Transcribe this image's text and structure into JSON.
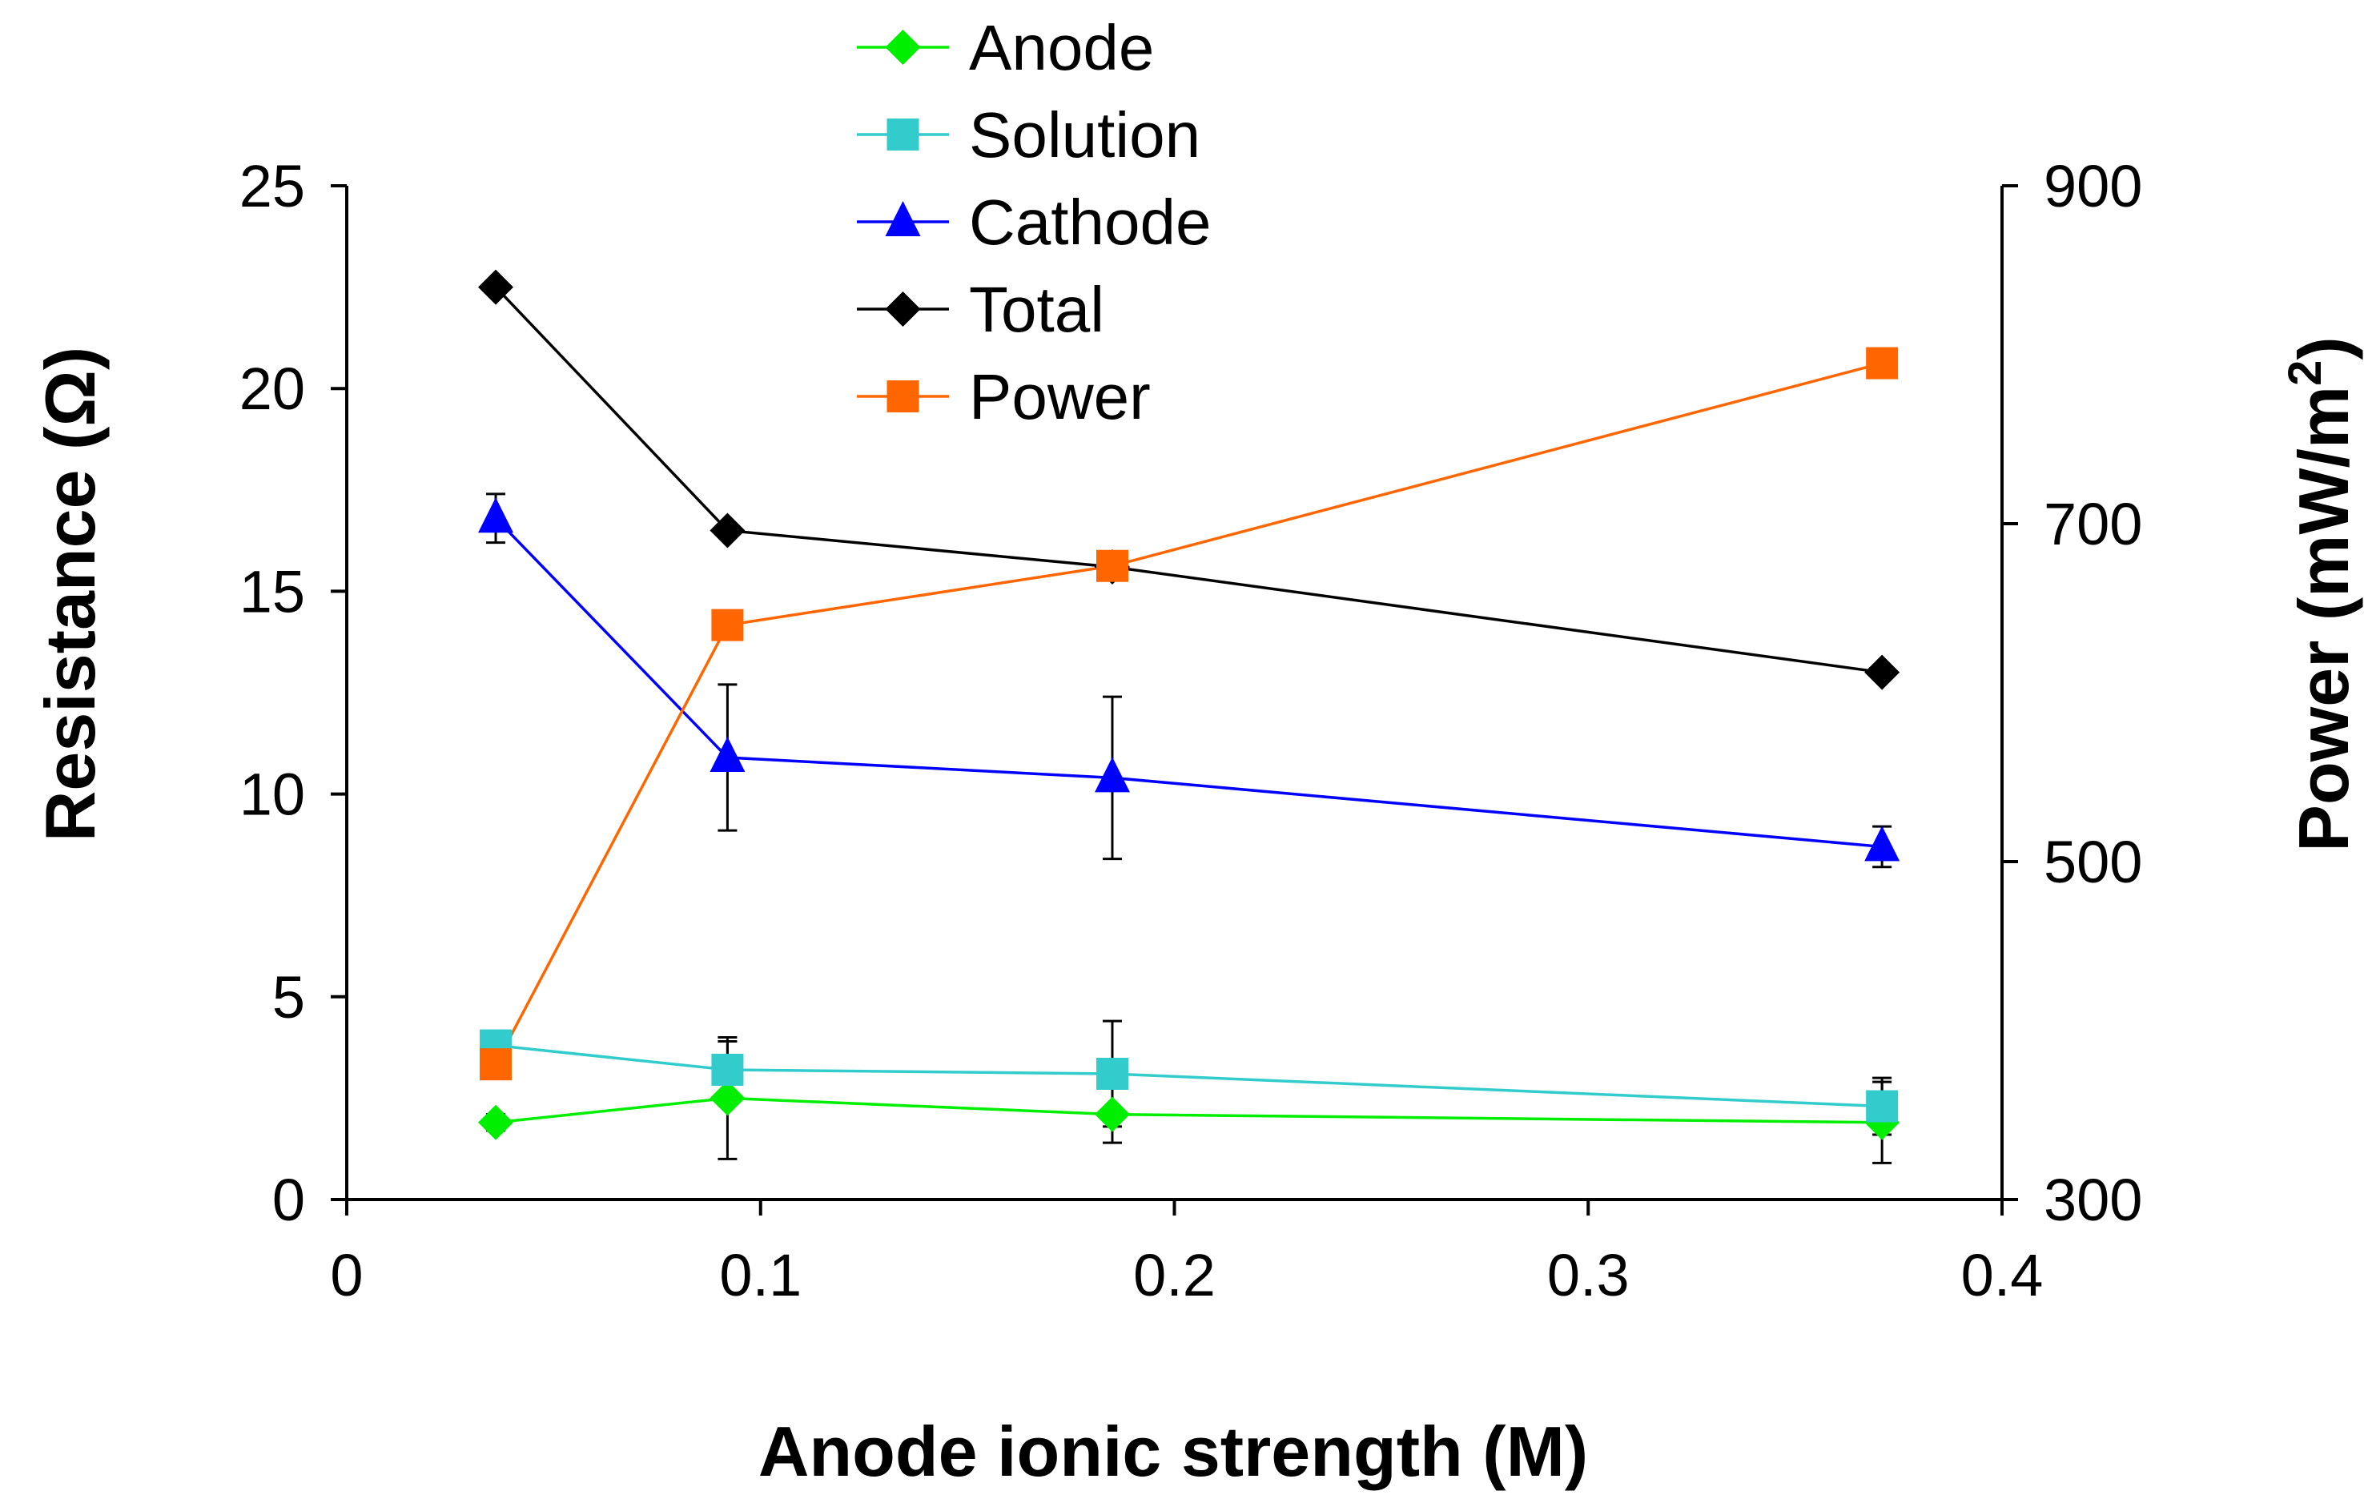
{
  "chart_data": {
    "type": "line",
    "xlabel": "Anode ionic strength (M)",
    "ylabel": "Resistance (Ω)",
    "y2label": {
      "text": "Power (mW/m",
      "superscript": "2",
      "suffix": ")"
    },
    "xlim": [
      0,
      0.4
    ],
    "ylim": [
      0,
      25
    ],
    "y2lim": [
      300,
      900
    ],
    "x_ticks": [
      "0",
      "0.1",
      "0.2",
      "0.3",
      "0.4"
    ],
    "y_ticks": [
      "0",
      "5",
      "10",
      "15",
      "20",
      "25"
    ],
    "y2_ticks": [
      "300",
      "500",
      "700",
      "900"
    ],
    "x": [
      0.036,
      0.092,
      0.185,
      0.371
    ],
    "legend_position": "top-center",
    "series": [
      {
        "name": "Anode",
        "axis": "left",
        "marker": "diamond",
        "color": "#00ee00",
        "values": [
          1.9,
          2.5,
          2.1,
          1.9
        ],
        "errors": [
          0.2,
          1.5,
          0.7,
          1.0
        ]
      },
      {
        "name": "Solution",
        "axis": "left",
        "marker": "square",
        "color": "#33cccc",
        "values": [
          3.8,
          3.2,
          3.1,
          2.3
        ],
        "errors": [
          0,
          0.7,
          1.3,
          0.7
        ]
      },
      {
        "name": "Cathode",
        "axis": "left",
        "marker": "triangle",
        "color": "#0000ff",
        "values": [
          16.8,
          10.9,
          10.4,
          8.7
        ],
        "errors": [
          0.6,
          1.8,
          2.0,
          0.5
        ]
      },
      {
        "name": "Total",
        "axis": "left",
        "marker": "diamond",
        "color": "#000000",
        "values": [
          22.5,
          16.5,
          15.6,
          13.0
        ],
        "errors": [
          0,
          0,
          0,
          0
        ]
      },
      {
        "name": "Power",
        "axis": "right",
        "marker": "square",
        "color": "#ff6600",
        "values": [
          380,
          640,
          675,
          795
        ],
        "errors": [
          0,
          0,
          0,
          0
        ]
      }
    ]
  }
}
